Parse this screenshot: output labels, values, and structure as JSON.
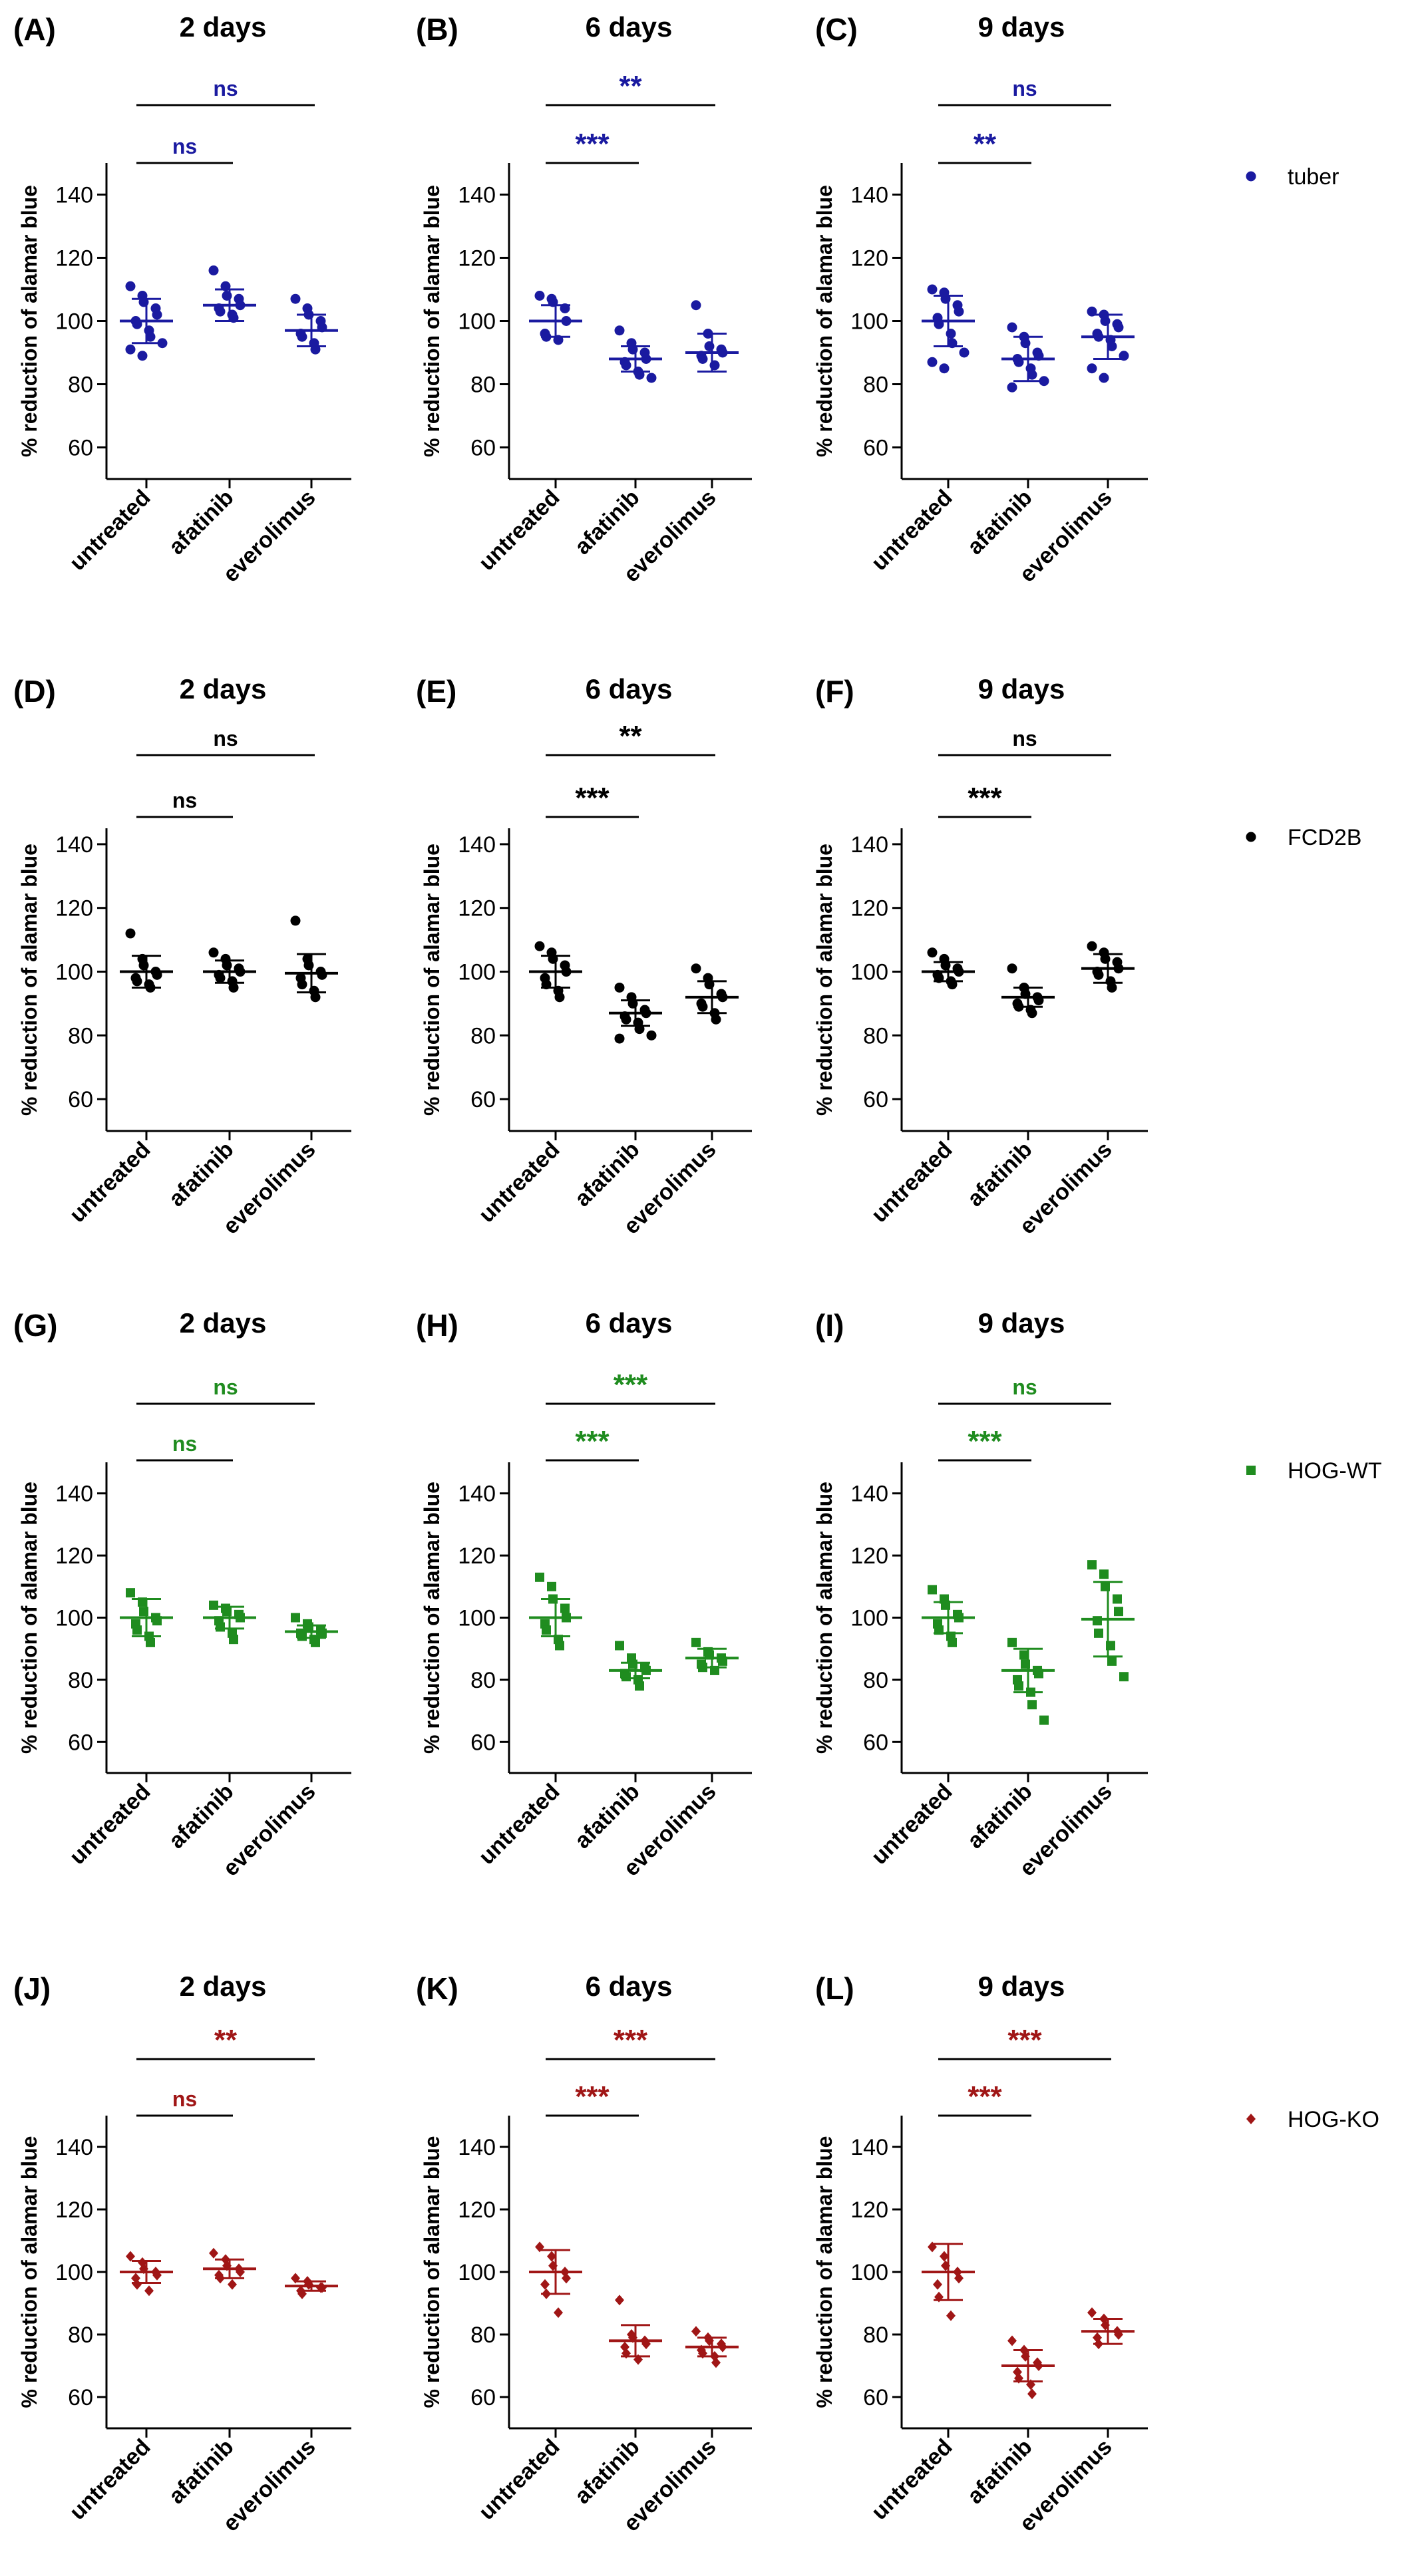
{
  "colors": {
    "tuber": "#1a1aa0",
    "FCD2B": "#000000",
    "HOG-WT": "#1f8c1f",
    "HOG-KO": "#a01616"
  },
  "legend": [
    {
      "label": "tuber",
      "marker": "circle",
      "color": "#1a1aa0"
    },
    {
      "label": "FCD2B",
      "marker": "circle",
      "color": "#000000"
    },
    {
      "label": "HOG-WT",
      "marker": "square",
      "color": "#1f8c1f"
    },
    {
      "label": "HOG-KO",
      "marker": "diamond",
      "color": "#a01616"
    }
  ],
  "chart_data": [
    {
      "panel": "(A)",
      "title": "2 days",
      "type": "scatter",
      "ylabel": "% reduction of alamar blue",
      "categories": [
        "untreated",
        "afatinib",
        "everolimus"
      ],
      "ylim": [
        50,
        150
      ],
      "yticks": [
        60,
        80,
        100,
        120,
        140
      ],
      "color": "#1a1aa0",
      "marker": "circle",
      "mean": [
        100,
        105,
        97
      ],
      "sd": [
        7,
        5,
        5
      ],
      "points": [
        [
          111,
          108,
          106,
          104,
          102,
          100,
          99,
          97,
          95,
          93,
          91,
          89
        ],
        [
          116,
          111,
          108,
          107,
          105,
          104,
          103,
          102,
          101
        ],
        [
          107,
          104,
          102,
          100,
          98,
          96,
          95,
          93,
          91
        ]
      ],
      "significance": [
        {
          "from": 0,
          "to": 1,
          "label": "ns"
        },
        {
          "from": 0,
          "to": 2,
          "label": "ns"
        }
      ]
    },
    {
      "panel": "(B)",
      "title": "6 days",
      "type": "scatter",
      "ylabel": "% reduction of alamar blue",
      "categories": [
        "untreated",
        "afatinib",
        "everolimus"
      ],
      "ylim": [
        50,
        150
      ],
      "yticks": [
        60,
        80,
        100,
        120,
        140
      ],
      "color": "#1a1aa0",
      "marker": "circle",
      "mean": [
        100,
        88,
        90
      ],
      "sd": [
        5,
        4,
        6
      ],
      "points": [
        [
          108,
          107,
          106,
          104,
          100,
          96,
          95,
          94
        ],
        [
          97,
          93,
          91,
          90,
          88,
          87,
          86,
          84,
          83,
          82
        ],
        [
          105,
          96,
          92,
          91,
          90,
          89,
          88,
          86
        ]
      ],
      "significance": [
        {
          "from": 0,
          "to": 1,
          "label": "***"
        },
        {
          "from": 0,
          "to": 2,
          "label": "**"
        }
      ]
    },
    {
      "panel": "(C)",
      "title": "9 days",
      "type": "scatter",
      "ylabel": "% reduction of alamar blue",
      "categories": [
        "untreated",
        "afatinib",
        "everolimus"
      ],
      "ylim": [
        50,
        150
      ],
      "yticks": [
        60,
        80,
        100,
        120,
        140
      ],
      "color": "#1a1aa0",
      "marker": "circle",
      "mean": [
        100,
        88,
        95
      ],
      "sd": [
        8,
        7,
        7
      ],
      "points": [
        [
          110,
          109,
          107,
          105,
          103,
          101,
          99,
          96,
          93,
          90,
          87,
          85
        ],
        [
          98,
          95,
          93,
          90,
          89,
          88,
          87,
          85,
          83,
          81,
          79
        ],
        [
          103,
          102,
          100,
          99,
          98,
          96,
          95,
          94,
          92,
          89,
          85,
          82
        ]
      ],
      "significance": [
        {
          "from": 0,
          "to": 1,
          "label": "**"
        },
        {
          "from": 0,
          "to": 2,
          "label": "ns"
        }
      ]
    },
    {
      "panel": "(D)",
      "title": "2 days",
      "type": "scatter",
      "ylabel": "% reduction of alamar blue",
      "categories": [
        "untreated",
        "afatinib",
        "everolimus"
      ],
      "ylim": [
        50,
        145
      ],
      "yticks": [
        60,
        80,
        100,
        120,
        140
      ],
      "color": "#000000",
      "marker": "circle",
      "mean": [
        100,
        100,
        99.5
      ],
      "sd": [
        5,
        3.5,
        6
      ],
      "points": [
        [
          112,
          104,
          102,
          100,
          99,
          98,
          97,
          96,
          95
        ],
        [
          106,
          104,
          102,
          101,
          100,
          99,
          98,
          97,
          95
        ],
        [
          116,
          104,
          102,
          100,
          99,
          98,
          96,
          94,
          92
        ]
      ],
      "significance": [
        {
          "from": 0,
          "to": 1,
          "label": "ns"
        },
        {
          "from": 0,
          "to": 2,
          "label": "ns"
        }
      ]
    },
    {
      "panel": "(E)",
      "title": "6 days",
      "type": "scatter",
      "ylabel": "% reduction of alamar blue",
      "categories": [
        "untreated",
        "afatinib",
        "everolimus"
      ],
      "ylim": [
        50,
        145
      ],
      "yticks": [
        60,
        80,
        100,
        120,
        140
      ],
      "color": "#000000",
      "marker": "circle",
      "mean": [
        100,
        87,
        92
      ],
      "sd": [
        5,
        4,
        5
      ],
      "points": [
        [
          108,
          106,
          104,
          102,
          100,
          98,
          96,
          94,
          92
        ],
        [
          95,
          92,
          90,
          88,
          87,
          86,
          85,
          84,
          82,
          80,
          79
        ],
        [
          101,
          98,
          96,
          93,
          92,
          90,
          89,
          87,
          85
        ]
      ],
      "significance": [
        {
          "from": 0,
          "to": 1,
          "label": "***"
        },
        {
          "from": 0,
          "to": 2,
          "label": "**"
        }
      ]
    },
    {
      "panel": "(F)",
      "title": "9 days",
      "type": "scatter",
      "ylabel": "% reduction of alamar blue",
      "categories": [
        "untreated",
        "afatinib",
        "everolimus"
      ],
      "ylim": [
        50,
        145
      ],
      "yticks": [
        60,
        80,
        100,
        120,
        140
      ],
      "color": "#000000",
      "marker": "circle",
      "mean": [
        100,
        92,
        101
      ],
      "sd": [
        3,
        3,
        4.5
      ],
      "points": [
        [
          106,
          104,
          102,
          101,
          100,
          99,
          98,
          97,
          96
        ],
        [
          101,
          95,
          93,
          92,
          91,
          90,
          89,
          88,
          87
        ],
        [
          108,
          106,
          104,
          103,
          101,
          100,
          99,
          97,
          95
        ]
      ],
      "significance": [
        {
          "from": 0,
          "to": 1,
          "label": "***"
        },
        {
          "from": 0,
          "to": 2,
          "label": "ns"
        }
      ]
    },
    {
      "panel": "(G)",
      "title": "2 days",
      "type": "scatter",
      "ylabel": "% reduction of alamar blue",
      "categories": [
        "untreated",
        "afatinib",
        "everolimus"
      ],
      "ylim": [
        50,
        150
      ],
      "yticks": [
        60,
        80,
        100,
        120,
        140
      ],
      "color": "#1f8c1f",
      "marker": "square",
      "mean": [
        100,
        100,
        95.5
      ],
      "sd": [
        6,
        3.5,
        2
      ],
      "points": [
        [
          108,
          105,
          102,
          100,
          99,
          98,
          96,
          94,
          92
        ],
        [
          104,
          103,
          102,
          101,
          100,
          99,
          97,
          95,
          93
        ],
        [
          100,
          98,
          97,
          96,
          95,
          95,
          94,
          93,
          92
        ]
      ],
      "significance": [
        {
          "from": 0,
          "to": 1,
          "label": "ns"
        },
        {
          "from": 0,
          "to": 2,
          "label": "ns"
        }
      ]
    },
    {
      "panel": "(H)",
      "title": "6 days",
      "type": "scatter",
      "ylabel": "% reduction of alamar blue",
      "categories": [
        "untreated",
        "afatinib",
        "everolimus"
      ],
      "ylim": [
        50,
        150
      ],
      "yticks": [
        60,
        80,
        100,
        120,
        140
      ],
      "color": "#1f8c1f",
      "marker": "square",
      "mean": [
        100,
        83,
        87
      ],
      "sd": [
        6,
        2.5,
        3
      ],
      "points": [
        [
          113,
          110,
          106,
          103,
          100,
          98,
          96,
          93,
          91
        ],
        [
          91,
          87,
          85,
          84,
          83,
          82,
          81,
          80,
          78
        ],
        [
          92,
          89,
          88,
          87,
          86,
          85,
          84,
          83
        ]
      ],
      "significance": [
        {
          "from": 0,
          "to": 1,
          "label": "***"
        },
        {
          "from": 0,
          "to": 2,
          "label": "***"
        }
      ]
    },
    {
      "panel": "(I)",
      "title": "9 days",
      "type": "scatter",
      "ylabel": "% reduction of alamar blue",
      "categories": [
        "untreated",
        "afatinib",
        "everolimus"
      ],
      "ylim": [
        50,
        150
      ],
      "yticks": [
        60,
        80,
        100,
        120,
        140
      ],
      "color": "#1f8c1f",
      "marker": "square",
      "mean": [
        100,
        83,
        99.5
      ],
      "sd": [
        5,
        7,
        12
      ],
      "points": [
        [
          109,
          106,
          104,
          101,
          100,
          98,
          96,
          94,
          92
        ],
        [
          92,
          88,
          85,
          83,
          82,
          80,
          78,
          76,
          72,
          67
        ],
        [
          117,
          114,
          110,
          106,
          102,
          99,
          95,
          91,
          86,
          81
        ]
      ],
      "significance": [
        {
          "from": 0,
          "to": 1,
          "label": "***"
        },
        {
          "from": 0,
          "to": 2,
          "label": "ns"
        }
      ]
    },
    {
      "panel": "(J)",
      "title": "2 days",
      "type": "scatter",
      "ylabel": "% reduction of alamar blue",
      "categories": [
        "untreated",
        "afatinib",
        "everolimus"
      ],
      "ylim": [
        50,
        150
      ],
      "yticks": [
        60,
        80,
        100,
        120,
        140
      ],
      "color": "#a01616",
      "marker": "diamond",
      "mean": [
        100,
        101,
        95.5
      ],
      "sd": [
        3.5,
        3,
        1.5
      ],
      "points": [
        [
          105,
          103,
          101,
          100,
          99,
          98,
          96,
          94
        ],
        [
          106,
          104,
          102,
          101,
          100,
          99,
          98,
          96
        ],
        [
          98,
          97,
          96,
          95,
          95,
          94,
          93
        ]
      ],
      "significance": [
        {
          "from": 0,
          "to": 1,
          "label": "ns"
        },
        {
          "from": 0,
          "to": 2,
          "label": "**"
        }
      ]
    },
    {
      "panel": "(K)",
      "title": "6 days",
      "type": "scatter",
      "ylabel": "% reduction of alamar blue",
      "categories": [
        "untreated",
        "afatinib",
        "everolimus"
      ],
      "ylim": [
        50,
        150
      ],
      "yticks": [
        60,
        80,
        100,
        120,
        140
      ],
      "color": "#a01616",
      "marker": "diamond",
      "mean": [
        100,
        78,
        76
      ],
      "sd": [
        7,
        5,
        3
      ],
      "points": [
        [
          108,
          105,
          102,
          100,
          98,
          96,
          93,
          87
        ],
        [
          91,
          80,
          79,
          78,
          77,
          76,
          74,
          72
        ],
        [
          81,
          79,
          78,
          77,
          76,
          75,
          74,
          73,
          71
        ]
      ],
      "significance": [
        {
          "from": 0,
          "to": 1,
          "label": "***"
        },
        {
          "from": 0,
          "to": 2,
          "label": "***"
        }
      ]
    },
    {
      "panel": "(L)",
      "title": "9 days",
      "type": "scatter",
      "ylabel": "% reduction of alamar blue",
      "categories": [
        "untreated",
        "afatinib",
        "everolimus"
      ],
      "ylim": [
        50,
        150
      ],
      "yticks": [
        60,
        80,
        100,
        120,
        140
      ],
      "color": "#a01616",
      "marker": "diamond",
      "mean": [
        100,
        70,
        81
      ],
      "sd": [
        9,
        5,
        4
      ],
      "points": [
        [
          108,
          105,
          102,
          100,
          98,
          96,
          92,
          86
        ],
        [
          78,
          75,
          73,
          71,
          70,
          68,
          66,
          64,
          61
        ],
        [
          87,
          85,
          83,
          81,
          80,
          79,
          77
        ]
      ],
      "significance": [
        {
          "from": 0,
          "to": 1,
          "label": "***"
        },
        {
          "from": 0,
          "to": 2,
          "label": "***"
        }
      ]
    }
  ]
}
